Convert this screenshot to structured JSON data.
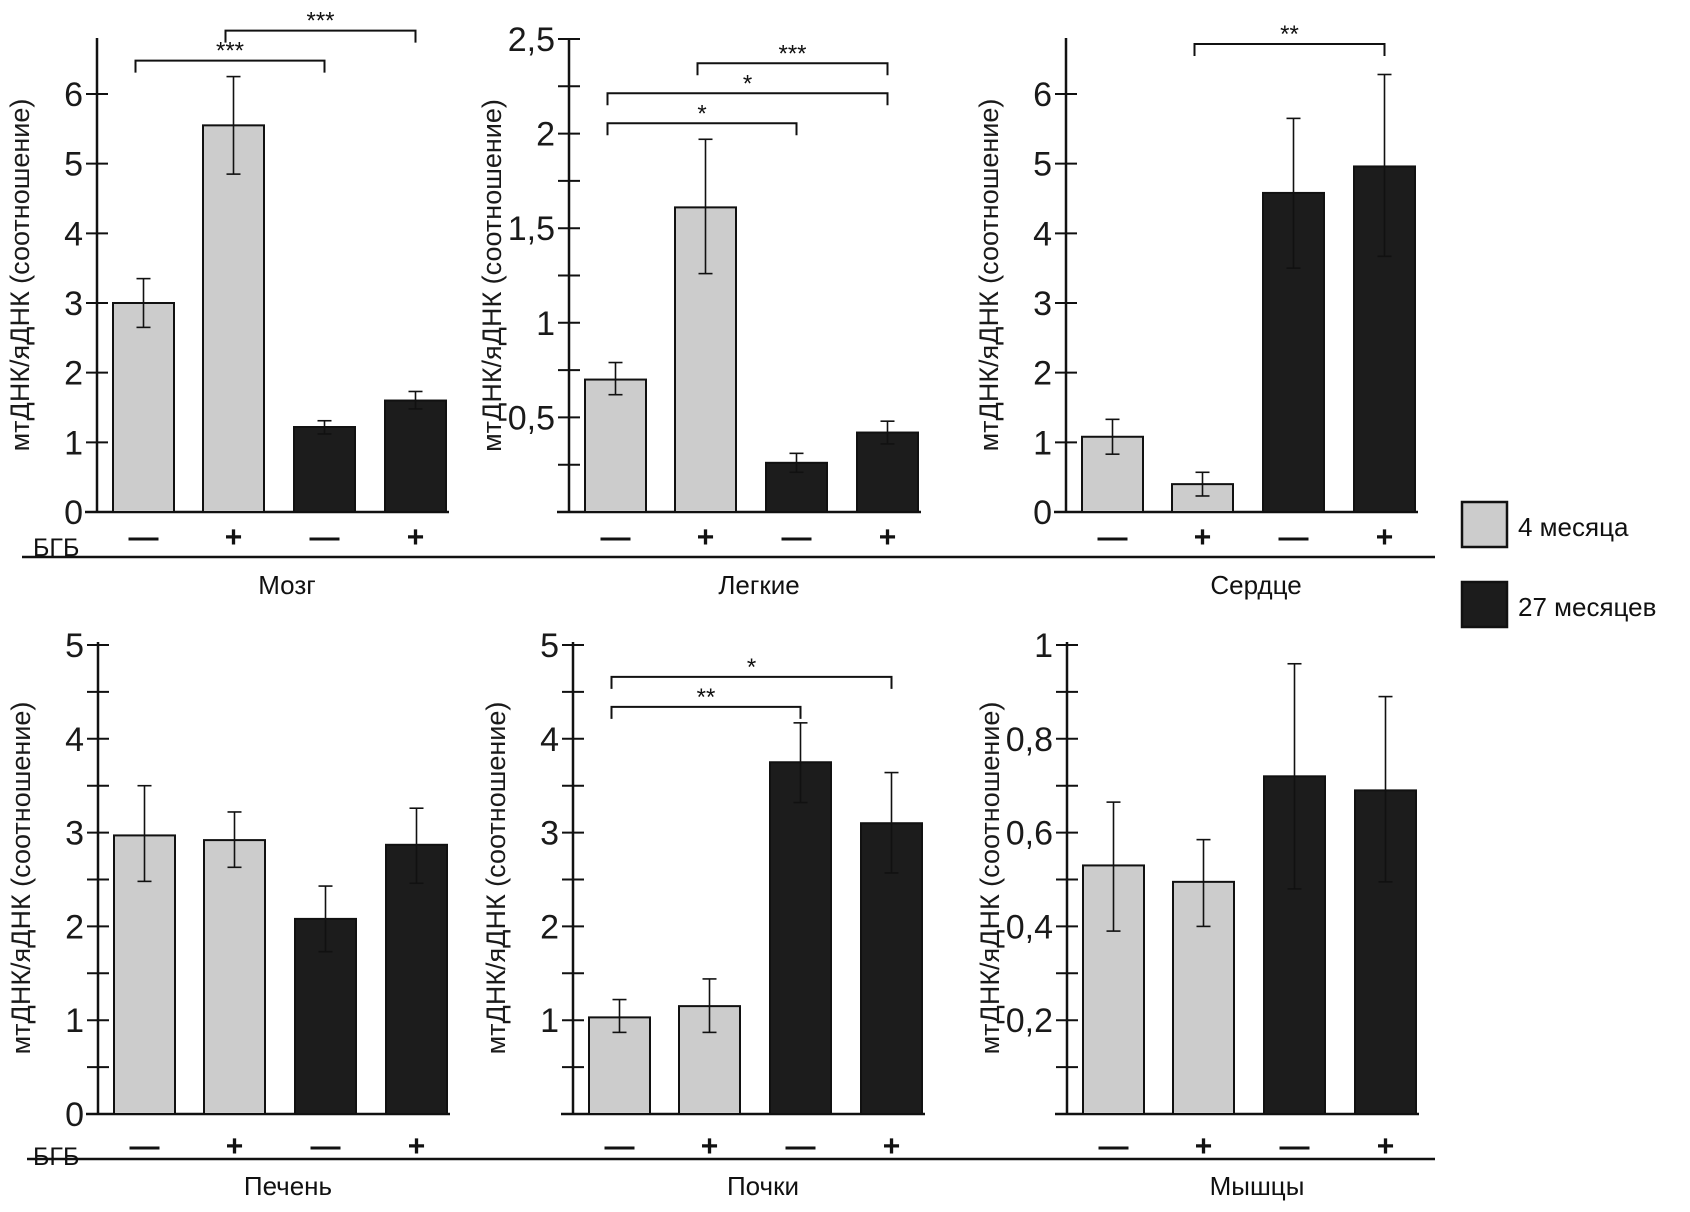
{
  "colors": {
    "group_4m": "#cccccc",
    "group_27m": "#1c1c1c",
    "axis": "#111111"
  },
  "legend": {
    "items": [
      {
        "label": "4 месяца",
        "series": "4m"
      },
      {
        "label": "27 месяцев",
        "series": "27m"
      }
    ],
    "placement": "right"
  },
  "treatment_label": "БГБ",
  "chart_data": [
    {
      "type": "bar",
      "title": "Мозг",
      "ylabel": "мтДНК/яДНК (соотношение)",
      "ylim": [
        0,
        6.8
      ],
      "yticks": [
        0,
        1,
        2,
        3,
        4,
        5,
        6
      ],
      "ytick_labels": [
        "0",
        "1",
        "2",
        "3",
        "4",
        "5",
        "6"
      ],
      "minor_ticks": [],
      "show_treatment_label": true,
      "categories": [
        "—",
        "+",
        "—",
        "+"
      ],
      "series_of_bar": [
        "4m",
        "4m",
        "27m",
        "27m"
      ],
      "values": [
        3.0,
        5.55,
        1.22,
        1.6
      ],
      "err_low": [
        2.65,
        4.85,
        1.12,
        1.48
      ],
      "err_high": [
        3.35,
        6.25,
        1.31,
        1.73
      ],
      "significance": [
        {
          "from": 0,
          "to": 2,
          "label": "***",
          "level": 1
        },
        {
          "from": 1,
          "to": 3,
          "label": "***",
          "level": 2
        }
      ]
    },
    {
      "type": "bar",
      "title": "Легкие",
      "ylabel": "мтДНК/яДНК (соотношение)",
      "ylim": [
        0,
        2.5
      ],
      "yticks": [
        0.5,
        1,
        1.5,
        2,
        2.5
      ],
      "ytick_labels": [
        "0,5",
        "1",
        "1,5",
        "2",
        "2,5"
      ],
      "minor_ticks": [
        0.25,
        0.75,
        1.25,
        1.75,
        2.25
      ],
      "show_treatment_label": false,
      "categories": [
        "—",
        "+",
        "—",
        "+"
      ],
      "series_of_bar": [
        "4m",
        "4m",
        "27m",
        "27m"
      ],
      "values": [
        0.7,
        1.61,
        0.26,
        0.42
      ],
      "err_low": [
        0.62,
        1.26,
        0.21,
        0.36
      ],
      "err_high": [
        0.79,
        1.97,
        0.31,
        0.48
      ],
      "significance": [
        {
          "from": 0,
          "to": 2,
          "label": "*",
          "level": 1
        },
        {
          "from": 0,
          "to": 3,
          "label": "*",
          "level": 2
        },
        {
          "from": 1,
          "to": 3,
          "label": "***",
          "level": 3
        }
      ]
    },
    {
      "type": "bar",
      "title": "Сердце",
      "ylabel": "мтДНК/яДНК (соотношение)",
      "ylim": [
        0,
        6.8
      ],
      "yticks": [
        0,
        1,
        2,
        3,
        4,
        5,
        6
      ],
      "ytick_labels": [
        "0",
        "1",
        "2",
        "3",
        "4",
        "5",
        "6"
      ],
      "minor_ticks": [],
      "show_treatment_label": false,
      "categories": [
        "—",
        "+",
        "—",
        "+"
      ],
      "series_of_bar": [
        "4m",
        "4m",
        "27m",
        "27m"
      ],
      "values": [
        1.08,
        0.4,
        4.58,
        4.96
      ],
      "err_low": [
        0.83,
        0.23,
        3.5,
        3.67
      ],
      "err_high": [
        1.33,
        0.57,
        5.65,
        6.28
      ],
      "significance": [
        {
          "from": 1,
          "to": 3,
          "label": "**",
          "level": 3
        }
      ]
    },
    {
      "type": "bar",
      "title": "Печень",
      "ylabel": "мтДНК/яДНК (соотношение)",
      "ylim": [
        0,
        5.05
      ],
      "yticks": [
        0,
        1,
        2,
        3,
        4,
        5
      ],
      "ytick_labels": [
        "0",
        "1",
        "2",
        "3",
        "4",
        "5"
      ],
      "minor_ticks": [
        0.5,
        1.5,
        2.5,
        3.5,
        4.5
      ],
      "show_treatment_label": true,
      "categories": [
        "—",
        "+",
        "—",
        "+"
      ],
      "series_of_bar": [
        "4m",
        "4m",
        "27m",
        "27m"
      ],
      "values": [
        2.97,
        2.92,
        2.08,
        2.87
      ],
      "err_low": [
        2.48,
        2.63,
        1.73,
        2.46
      ],
      "err_high": [
        3.5,
        3.22,
        2.43,
        3.26
      ],
      "significance": []
    },
    {
      "type": "bar",
      "title": "Почки",
      "ylabel": "мтДНК/яДНК (соотношение)",
      "ylim": [
        0,
        5.05
      ],
      "yticks": [
        1,
        2,
        3,
        4,
        5
      ],
      "ytick_labels": [
        "1",
        "2",
        "3",
        "4",
        "5"
      ],
      "minor_ticks": [
        0.5,
        1.5,
        2.5,
        3.5,
        4.5
      ],
      "show_treatment_label": false,
      "categories": [
        "—",
        "+",
        "—",
        "+"
      ],
      "series_of_bar": [
        "4m",
        "4m",
        "27m",
        "27m"
      ],
      "values": [
        1.03,
        1.15,
        3.75,
        3.1
      ],
      "err_low": [
        0.87,
        0.87,
        3.32,
        2.57
      ],
      "err_high": [
        1.22,
        1.44,
        4.17,
        3.64
      ],
      "significance": [
        {
          "from": 0,
          "to": 2,
          "label": "**",
          "level": 1
        },
        {
          "from": 0,
          "to": 3,
          "label": "*",
          "level": 2
        }
      ]
    },
    {
      "type": "bar",
      "title": "Мышцы",
      "ylabel": "мтДНК/яДНК (соотношение)",
      "ylim": [
        0,
        1.01
      ],
      "yticks": [
        0.2,
        0.4,
        0.6,
        0.8,
        1
      ],
      "ytick_labels": [
        "0,2",
        "0,4",
        "0,6",
        "0,8",
        "1"
      ],
      "minor_ticks": [
        0.1,
        0.3,
        0.5,
        0.7,
        0.9
      ],
      "show_treatment_label": false,
      "categories": [
        "—",
        "+",
        "—",
        "+"
      ],
      "series_of_bar": [
        "4m",
        "4m",
        "27m",
        "27m"
      ],
      "values": [
        0.53,
        0.495,
        0.72,
        0.69
      ],
      "err_low": [
        0.39,
        0.4,
        0.48,
        0.495
      ],
      "err_high": [
        0.665,
        0.585,
        0.96,
        0.89
      ],
      "significance": []
    }
  ]
}
